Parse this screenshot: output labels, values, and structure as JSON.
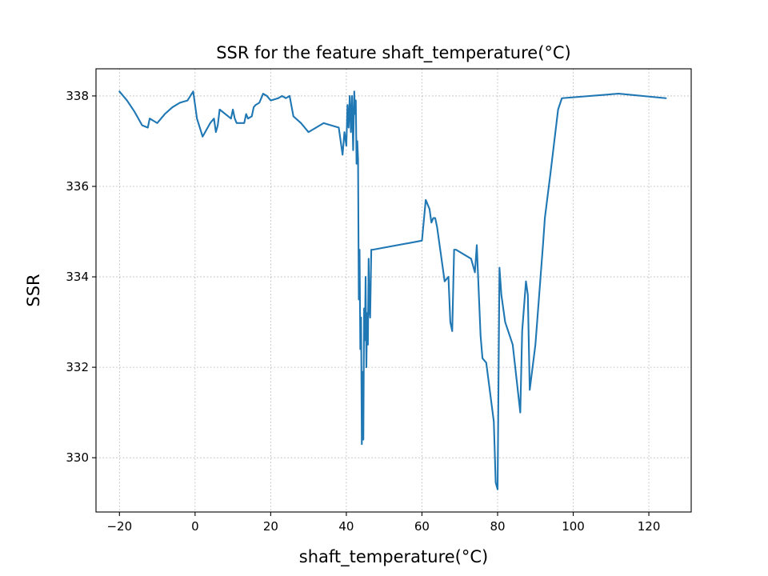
{
  "chart_data": {
    "type": "line",
    "title": "SSR for the feature shaft_temperature(°C)",
    "xlabel": "shaft_temperature(°C)",
    "ylabel": "SSR",
    "xlim": [
      -26.2,
      131.2
    ],
    "ylim": [
      328.8,
      338.6
    ],
    "xticks": [
      -20,
      0,
      20,
      40,
      60,
      80,
      100,
      120
    ],
    "yticks": [
      330,
      332,
      334,
      336,
      338
    ],
    "xtick_labels": [
      "−20",
      "0",
      "20",
      "40",
      "60",
      "80",
      "100",
      "120"
    ],
    "ytick_labels": [
      "330",
      "332",
      "334",
      "336",
      "338"
    ],
    "grid": true,
    "line_color": "#1f77b4",
    "series": [
      {
        "x": [
          -20,
          -18,
          -16,
          -14,
          -12.5,
          -12,
          -11,
          -10,
          -8,
          -6,
          -4,
          -2,
          -0.5,
          0.5,
          2,
          4,
          5,
          5.5,
          6,
          6.5,
          9.5,
          10,
          10.5,
          11,
          13,
          13.5,
          14,
          15,
          15.5,
          16,
          17,
          18,
          19,
          20,
          22,
          23,
          24,
          25,
          26,
          28,
          30,
          34,
          38,
          39,
          39.5,
          40,
          40.3,
          40.6,
          40.9,
          41.2,
          41.5,
          41.8,
          42.1,
          42.3,
          42.5,
          42.7,
          42.9,
          43.1,
          43.3,
          43.5,
          43.7,
          43.9,
          44.1,
          44.3,
          44.5,
          44.7,
          44.9,
          45.1,
          45.3,
          45.5,
          45.7,
          45.9,
          46.1,
          46.3,
          46.6,
          47,
          60,
          61,
          62,
          62.5,
          63,
          63.5,
          64,
          65,
          66,
          67,
          67.5,
          68,
          68.5,
          69,
          73,
          74,
          74.5,
          75,
          75.5,
          76,
          77,
          79,
          79.5,
          80,
          80.5,
          81,
          82,
          84,
          86,
          86.5,
          87.5,
          88,
          88.5,
          90,
          92,
          92.5,
          94,
          96,
          97,
          112,
          124.5
        ],
        "y": [
          338.1,
          337.9,
          337.65,
          337.35,
          337.3,
          337.5,
          337.45,
          337.4,
          337.6,
          337.75,
          337.85,
          337.9,
          338.1,
          337.5,
          337.1,
          337.4,
          337.5,
          337.2,
          337.35,
          337.7,
          337.5,
          337.7,
          337.5,
          337.4,
          337.4,
          337.6,
          337.5,
          337.55,
          337.75,
          337.8,
          337.85,
          338.05,
          338.0,
          337.9,
          337.95,
          338.0,
          337.95,
          338.0,
          337.55,
          337.4,
          337.2,
          337.4,
          337.3,
          336.7,
          337.2,
          336.9,
          337.8,
          337.3,
          338.0,
          337.2,
          338.0,
          336.8,
          338.1,
          337.6,
          337.9,
          336.5,
          337.0,
          336.6,
          333.5,
          334.6,
          332.4,
          333.1,
          330.3,
          331.9,
          330.4,
          333.3,
          332.6,
          334.0,
          332.0,
          333.2,
          332.5,
          334.4,
          333.3,
          333.1,
          334.6,
          334.6,
          334.8,
          335.7,
          335.5,
          335.2,
          335.3,
          335.3,
          335.1,
          334.5,
          333.9,
          334.0,
          333.0,
          332.8,
          334.6,
          334.6,
          334.4,
          334.1,
          334.7,
          333.7,
          332.7,
          332.2,
          332.1,
          330.8,
          329.45,
          329.3,
          334.2,
          333.6,
          333.0,
          332.5,
          331.0,
          332.8,
          333.9,
          333.6,
          331.5,
          332.5,
          334.7,
          335.3,
          336.3,
          337.7,
          337.95,
          338.05,
          337.95
        ]
      }
    ]
  }
}
